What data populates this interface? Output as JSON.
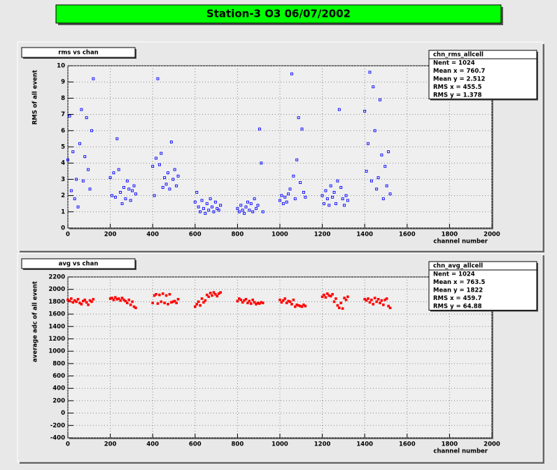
{
  "title": "Station-3 O3 06/07/2002",
  "chart_data": [
    {
      "type": "scatter",
      "title": "rms vs chan",
      "stats": {
        "name": "chn_rms_allcell",
        "lines": [
          "Nent = 1024",
          "Mean x = 760.7",
          "Mean y = 2.512",
          "RMS x = 455.5",
          "RMS y = 1.378"
        ]
      },
      "xlabel": "channel number",
      "ylabel": "RMS of all event",
      "color": "#0000ff",
      "marker": "open",
      "grid": true,
      "xlim": [
        0,
        2000
      ],
      "xticks": [
        0,
        200,
        400,
        600,
        800,
        1000,
        1200,
        1400,
        1600,
        1800,
        2000
      ],
      "ylim": [
        0,
        10
      ],
      "yticks": [
        0,
        1,
        2,
        3,
        4,
        5,
        6,
        7,
        8,
        9,
        10
      ],
      "x": [
        0,
        8,
        16,
        24,
        32,
        40,
        48,
        56,
        64,
        72,
        80,
        88,
        96,
        104,
        112,
        120,
        200,
        208,
        216,
        224,
        232,
        240,
        248,
        256,
        264,
        272,
        280,
        288,
        296,
        304,
        312,
        320,
        400,
        408,
        416,
        424,
        432,
        440,
        448,
        456,
        464,
        472,
        480,
        488,
        496,
        504,
        512,
        520,
        600,
        608,
        616,
        624,
        632,
        640,
        648,
        656,
        664,
        672,
        680,
        688,
        696,
        704,
        712,
        720,
        800,
        808,
        816,
        824,
        832,
        840,
        848,
        856,
        864,
        872,
        880,
        888,
        896,
        904,
        912,
        920,
        1000,
        1008,
        1016,
        1024,
        1032,
        1040,
        1048,
        1056,
        1064,
        1072,
        1080,
        1088,
        1096,
        1104,
        1112,
        1120,
        1200,
        1208,
        1216,
        1224,
        1232,
        1240,
        1248,
        1256,
        1264,
        1272,
        1280,
        1288,
        1296,
        1304,
        1312,
        1320,
        1400,
        1408,
        1416,
        1424,
        1432,
        1440,
        1448,
        1456,
        1464,
        1472,
        1480,
        1488,
        1496,
        1504,
        1512,
        1520
      ],
      "y": [
        4.2,
        6.9,
        2.3,
        4.7,
        1.8,
        3.0,
        1.3,
        5.2,
        7.3,
        2.9,
        4.4,
        6.8,
        3.6,
        2.4,
        6.0,
        9.2,
        3.1,
        2.0,
        3.4,
        1.9,
        5.5,
        3.6,
        2.2,
        1.5,
        2.5,
        1.8,
        2.9,
        2.4,
        1.7,
        2.3,
        2.6,
        2.1,
        3.8,
        2.0,
        4.3,
        9.2,
        3.9,
        4.6,
        2.5,
        3.1,
        2.7,
        3.4,
        2.4,
        5.3,
        3.0,
        3.6,
        2.6,
        3.2,
        1.6,
        2.2,
        1.3,
        1.0,
        1.7,
        1.2,
        0.9,
        1.5,
        1.1,
        1.8,
        1.3,
        1.0,
        1.6,
        1.2,
        1.1,
        1.4,
        1.2,
        1.0,
        1.4,
        1.1,
        0.9,
        1.3,
        1.6,
        1.1,
        1.5,
        1.0,
        1.8,
        1.2,
        1.4,
        6.1,
        4.0,
        1.0,
        1.7,
        2.0,
        1.5,
        1.9,
        1.6,
        2.1,
        2.4,
        9.5,
        3.2,
        1.8,
        4.2,
        6.8,
        2.8,
        6.1,
        2.2,
        1.9,
        2.0,
        1.5,
        2.3,
        1.8,
        1.4,
        2.6,
        1.9,
        2.2,
        1.5,
        2.9,
        7.3,
        2.5,
        1.8,
        1.4,
        2.0,
        1.7,
        7.2,
        3.5,
        5.2,
        9.6,
        2.9,
        8.7,
        6.0,
        2.4,
        3.1,
        7.9,
        4.5,
        1.8,
        3.8,
        2.6,
        4.7,
        2.1
      ]
    },
    {
      "type": "scatter",
      "title": "avg vs chan",
      "stats": {
        "name": "chn_avg_allcell",
        "lines": [
          "Nent = 1024",
          "Mean x = 763.5",
          "Mean y = 1822",
          "RMS x = 459.7",
          "RMS y = 64.88"
        ]
      },
      "xlabel": "channel number",
      "ylabel": "average adc of all event",
      "color": "#ff0000",
      "marker": "filled",
      "grid": true,
      "xlim": [
        0,
        2000
      ],
      "xticks": [
        0,
        200,
        400,
        600,
        800,
        1000,
        1200,
        1400,
        1600,
        1800,
        2000
      ],
      "ylim": [
        -400,
        2200
      ],
      "yticks": [
        -400,
        -200,
        0,
        200,
        400,
        600,
        800,
        1000,
        1200,
        1400,
        1600,
        1800,
        2000,
        2200
      ],
      "x": [
        0,
        8,
        16,
        24,
        32,
        40,
        48,
        56,
        64,
        72,
        80,
        88,
        96,
        104,
        112,
        120,
        200,
        208,
        216,
        224,
        232,
        240,
        248,
        256,
        264,
        272,
        280,
        288,
        296,
        304,
        312,
        320,
        400,
        408,
        416,
        424,
        432,
        440,
        448,
        456,
        464,
        472,
        480,
        488,
        496,
        504,
        512,
        520,
        600,
        608,
        616,
        624,
        632,
        640,
        648,
        656,
        664,
        672,
        680,
        688,
        696,
        704,
        712,
        720,
        800,
        808,
        816,
        824,
        832,
        840,
        848,
        856,
        864,
        872,
        880,
        888,
        896,
        904,
        912,
        920,
        1000,
        1008,
        1016,
        1024,
        1032,
        1040,
        1048,
        1056,
        1064,
        1072,
        1080,
        1088,
        1096,
        1104,
        1112,
        1120,
        1200,
        1208,
        1216,
        1224,
        1232,
        1240,
        1248,
        1256,
        1264,
        1272,
        1280,
        1288,
        1296,
        1304,
        1312,
        1320,
        1400,
        1408,
        1416,
        1424,
        1432,
        1440,
        1448,
        1456,
        1464,
        1472,
        1480,
        1488,
        1496,
        1504,
        1512,
        1520
      ],
      "y": [
        1830,
        1810,
        1850,
        1790,
        1820,
        1800,
        1840,
        1780,
        1760,
        1810,
        1830,
        1790,
        1750,
        1820,
        1800,
        1840,
        1850,
        1860,
        1830,
        1870,
        1840,
        1850,
        1820,
        1860,
        1830,
        1810,
        1780,
        1830,
        1750,
        1800,
        1720,
        1700,
        1780,
        1900,
        1920,
        1770,
        1910,
        1800,
        1930,
        1780,
        1900,
        1760,
        1920,
        1790,
        1800,
        1810,
        1780,
        1840,
        1720,
        1760,
        1800,
        1740,
        1850,
        1790,
        1820,
        1910,
        1880,
        1940,
        1900,
        1950,
        1920,
        1890,
        1930,
        1950,
        1810,
        1850,
        1830,
        1790,
        1820,
        1840,
        1780,
        1810,
        1770,
        1830,
        1790,
        1760,
        1780,
        1770,
        1790,
        1780,
        1830,
        1790,
        1820,
        1850,
        1780,
        1810,
        1800,
        1760,
        1830,
        1720,
        1750,
        1740,
        1730,
        1720,
        1750,
        1730,
        1880,
        1910,
        1870,
        1930,
        1900,
        1890,
        1920,
        1800,
        1850,
        1740,
        1700,
        1780,
        1690,
        1860,
        1830,
        1880,
        1840,
        1820,
        1850,
        1790,
        1830,
        1760,
        1860,
        1800,
        1840,
        1780,
        1820,
        1750,
        1830,
        1850,
        1730,
        1700
      ]
    }
  ]
}
